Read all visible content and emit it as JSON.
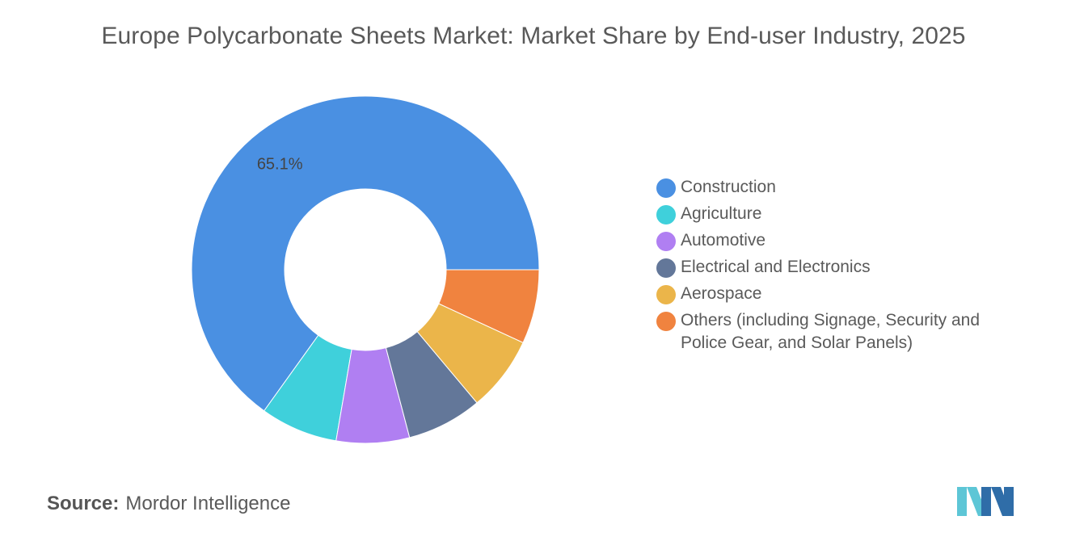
{
  "chart_data": {
    "type": "pie",
    "title": "Europe Polycarbonate Sheets Market: Market Share by End-user Industry, 2025",
    "hole": true,
    "legend_position": "right",
    "categories": [
      "Construction",
      "Agriculture",
      "Automotive",
      "Electrical and Electronics",
      "Aerospace",
      "Others (including Signage, Security and Police Gear, and Solar Panels)"
    ],
    "values": [
      65.1,
      7.2,
      6.8,
      7.0,
      7.0,
      6.9
    ],
    "data_labels": [
      "65.1%",
      "",
      "",
      "",
      "",
      ""
    ],
    "colors": [
      "#4A90E2",
      "#3FD0DB",
      "#B07FF2",
      "#637799",
      "#EBB54A",
      "#F0833F"
    ]
  },
  "source": {
    "label": "Source:",
    "text": "Mordor Intelligence"
  },
  "logo": {
    "icon": "mordor-intelligence-logo-icon",
    "color_light": "#5DC6D6",
    "color_dark": "#2F6DA8"
  }
}
